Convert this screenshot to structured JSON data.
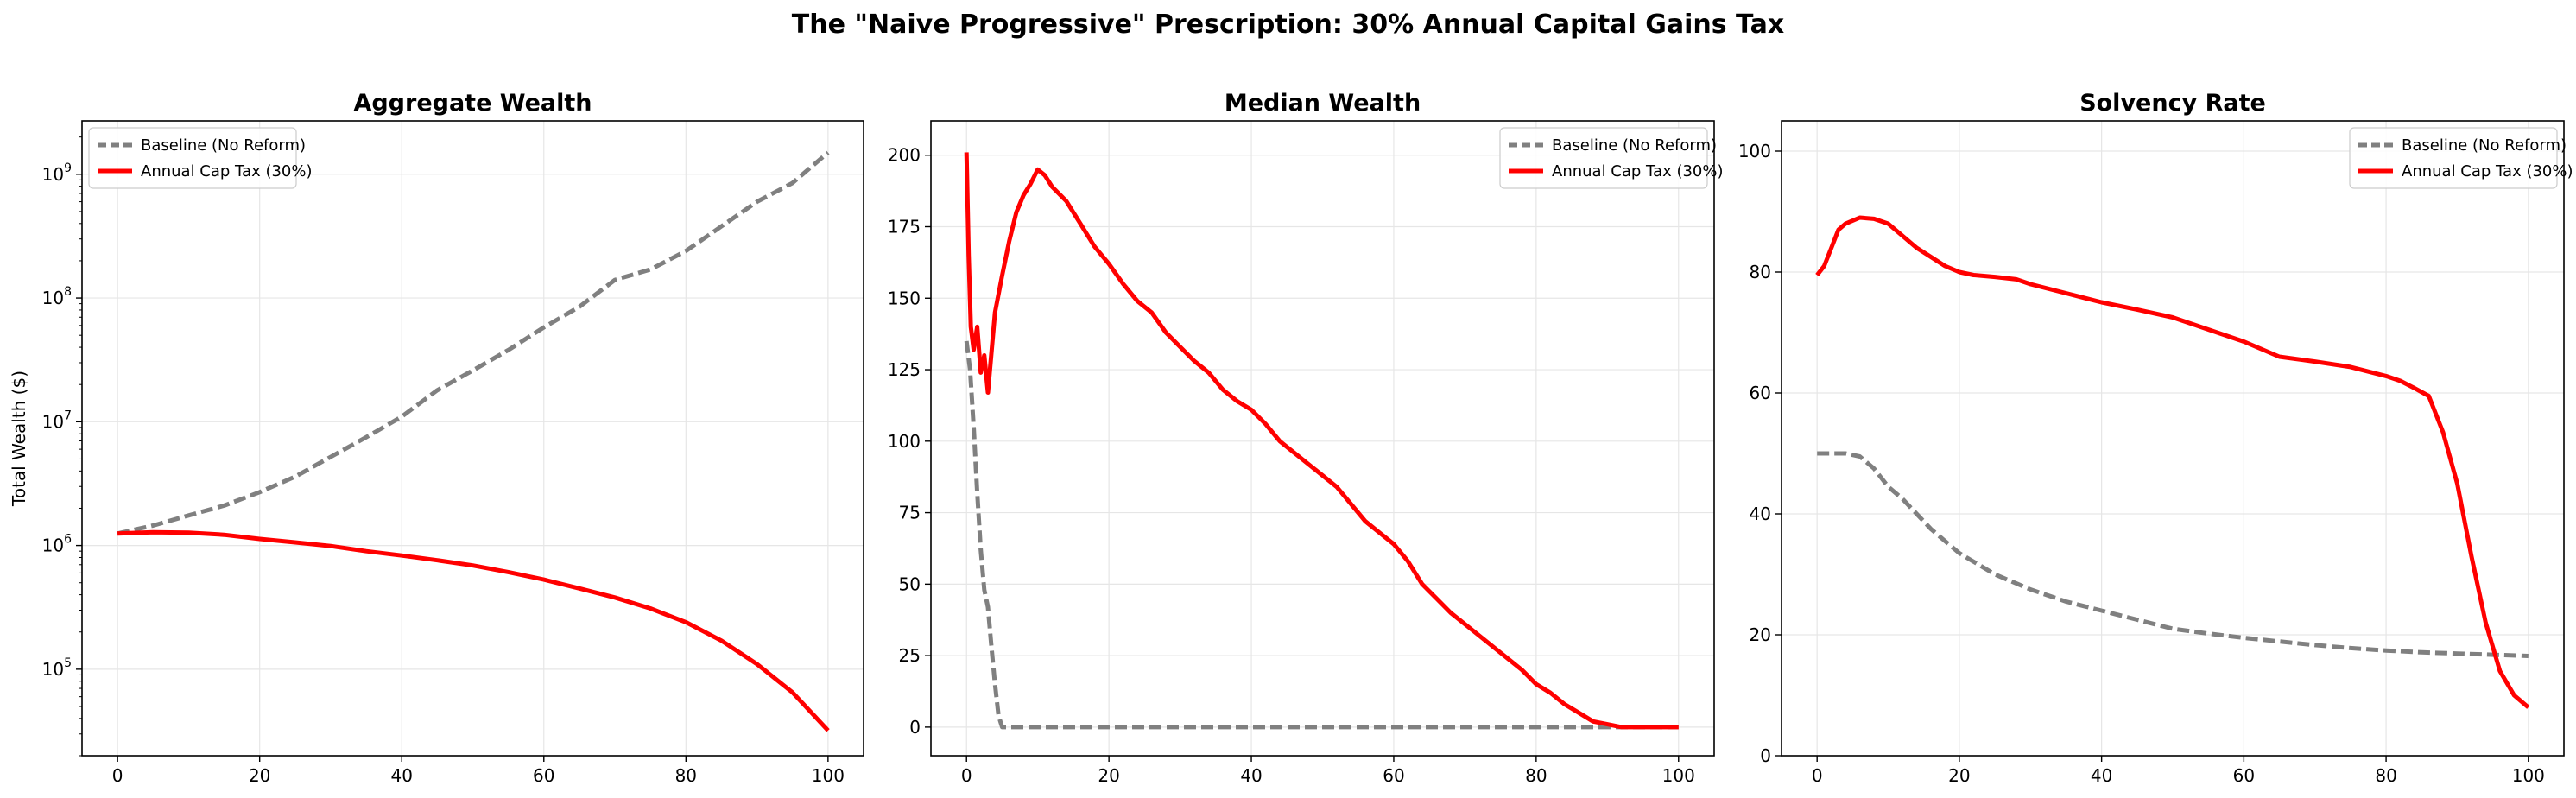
{
  "suptitle": "The \"Naive Progressive\" Prescription: 30% Annual Capital Gains Tax",
  "colors": {
    "baseline": "#808080",
    "reform": "#ff0000",
    "grid": "#e6e6e6"
  },
  "chart_data": [
    {
      "type": "line",
      "title": "Aggregate Wealth",
      "xlabel": "",
      "ylabel": "Total Wealth ($)",
      "yscale": "log",
      "xlim": [
        -5,
        105
      ],
      "ylim": [
        20000,
        2700000000
      ],
      "xticks": [
        0,
        20,
        40,
        60,
        80,
        100
      ],
      "yticks": [
        100000,
        1000000,
        10000000,
        100000000,
        1000000000
      ],
      "ytick_labels": [
        [
          "10",
          "5"
        ],
        [
          "10",
          "6"
        ],
        [
          "10",
          "7"
        ],
        [
          "10",
          "8"
        ],
        [
          "10",
          "9"
        ]
      ],
      "grid": true,
      "legend_position": "upper left",
      "series": [
        {
          "name": "Baseline (No Reform)",
          "style": "dashed",
          "color": "#808080",
          "x": [
            0,
            5,
            10,
            15,
            20,
            25,
            30,
            35,
            40,
            45,
            50,
            55,
            60,
            65,
            70,
            75,
            80,
            85,
            90,
            95,
            100
          ],
          "y": [
            1250000,
            1450000,
            1750000,
            2100000,
            2700000,
            3600000,
            5200000,
            7500000,
            11000000,
            18000000,
            26000000,
            38000000,
            58000000,
            85000000,
            140000000,
            170000000,
            240000000,
            380000000,
            600000000,
            850000000,
            1500000000
          ]
        },
        {
          "name": "Annual Cap Tax (30%)",
          "style": "solid",
          "color": "#ff0000",
          "x": [
            0,
            5,
            10,
            15,
            20,
            25,
            30,
            35,
            40,
            45,
            50,
            55,
            60,
            65,
            70,
            75,
            80,
            85,
            90,
            95,
            100
          ],
          "y": [
            1250000,
            1280000,
            1270000,
            1220000,
            1130000,
            1060000,
            990000,
            900000,
            830000,
            760000,
            690000,
            610000,
            530000,
            450000,
            380000,
            310000,
            240000,
            170000,
            110000,
            65000,
            32000
          ]
        }
      ]
    },
    {
      "type": "line",
      "title": "Median Wealth",
      "xlabel": "",
      "ylabel": "",
      "yscale": "linear",
      "xlim": [
        -5,
        105
      ],
      "ylim": [
        -10,
        212
      ],
      "xticks": [
        0,
        20,
        40,
        60,
        80,
        100
      ],
      "yticks": [
        0,
        25,
        50,
        75,
        100,
        125,
        150,
        175,
        200
      ],
      "grid": true,
      "legend_position": "upper right",
      "series": [
        {
          "name": "Baseline (No Reform)",
          "style": "dashed",
          "color": "#808080",
          "x": [
            0,
            0.5,
            1,
            1.5,
            2,
            2.5,
            3,
            3.5,
            4,
            4.5,
            5,
            10,
            20,
            30,
            40,
            50,
            60,
            70,
            80,
            90,
            100
          ],
          "y": [
            135,
            125,
            105,
            82,
            62,
            48,
            42,
            28,
            15,
            4,
            0,
            0,
            0,
            0,
            0,
            0,
            0,
            0,
            0,
            0,
            0
          ]
        },
        {
          "name": "Annual Cap Tax (30%)",
          "style": "solid",
          "color": "#ff0000",
          "x": [
            0,
            0.3,
            0.6,
            1,
            1.5,
            2,
            2.5,
            3,
            4,
            5,
            6,
            7,
            8,
            9,
            10,
            11,
            12,
            14,
            16,
            18,
            20,
            22,
            24,
            26,
            28,
            30,
            32,
            34,
            36,
            38,
            40,
            42,
            44,
            46,
            48,
            50,
            52,
            54,
            56,
            58,
            60,
            62,
            64,
            66,
            68,
            70,
            72,
            74,
            76,
            78,
            80,
            82,
            84,
            86,
            88,
            90,
            92,
            94,
            96,
            98,
            100
          ],
          "y": [
            201,
            165,
            140,
            132,
            140,
            124,
            130,
            117,
            145,
            158,
            170,
            180,
            186,
            190,
            195,
            193,
            189,
            184,
            176,
            168,
            162,
            155,
            149,
            145,
            138,
            133,
            128,
            124,
            118,
            114,
            111,
            106,
            100,
            96,
            92,
            88,
            84,
            78,
            72,
            68,
            64,
            58,
            50,
            45,
            40,
            36,
            32,
            28,
            24,
            20,
            15,
            12,
            8,
            5,
            2,
            1,
            0,
            0,
            0,
            0,
            0
          ]
        }
      ]
    },
    {
      "type": "line",
      "title": "Solvency Rate",
      "xlabel": "",
      "ylabel": "",
      "yscale": "linear",
      "xlim": [
        -5,
        105
      ],
      "ylim": [
        0,
        105
      ],
      "xticks": [
        0,
        20,
        40,
        60,
        80,
        100
      ],
      "yticks": [
        0,
        20,
        40,
        60,
        80,
        100
      ],
      "grid": true,
      "legend_position": "upper right",
      "series": [
        {
          "name": "Baseline (No Reform)",
          "style": "dashed",
          "color": "#808080",
          "x": [
            0,
            2,
            4,
            6,
            8,
            10,
            12,
            14,
            16,
            18,
            20,
            25,
            30,
            35,
            40,
            45,
            50,
            55,
            60,
            65,
            70,
            75,
            80,
            85,
            90,
            95,
            100
          ],
          "y": [
            50,
            50,
            50,
            49.5,
            47.5,
            44.5,
            42.5,
            40,
            37.5,
            35.5,
            33.5,
            30,
            27.5,
            25.5,
            24,
            22.5,
            21,
            20.2,
            19.5,
            18.9,
            18.3,
            17.8,
            17.4,
            17.1,
            16.9,
            16.7,
            16.5
          ]
        },
        {
          "name": "Annual Cap Tax (30%)",
          "style": "solid",
          "color": "#ff0000",
          "x": [
            0,
            1,
            2,
            3,
            4,
            5,
            6,
            8,
            10,
            12,
            14,
            16,
            18,
            20,
            22,
            25,
            28,
            30,
            35,
            40,
            45,
            50,
            55,
            60,
            65,
            70,
            75,
            80,
            82,
            84,
            86,
            88,
            90,
            92,
            94,
            96,
            98,
            100
          ],
          "y": [
            79.5,
            81,
            84,
            87,
            88,
            88.5,
            89,
            88.8,
            88,
            86,
            84,
            82.5,
            81,
            80,
            79.5,
            79.2,
            78.8,
            78,
            76.5,
            75,
            73.8,
            72.5,
            70.5,
            68.5,
            66,
            65.2,
            64.3,
            62.8,
            62,
            60.8,
            59.5,
            53.5,
            45,
            33,
            22,
            14,
            10,
            8
          ]
        }
      ]
    }
  ]
}
